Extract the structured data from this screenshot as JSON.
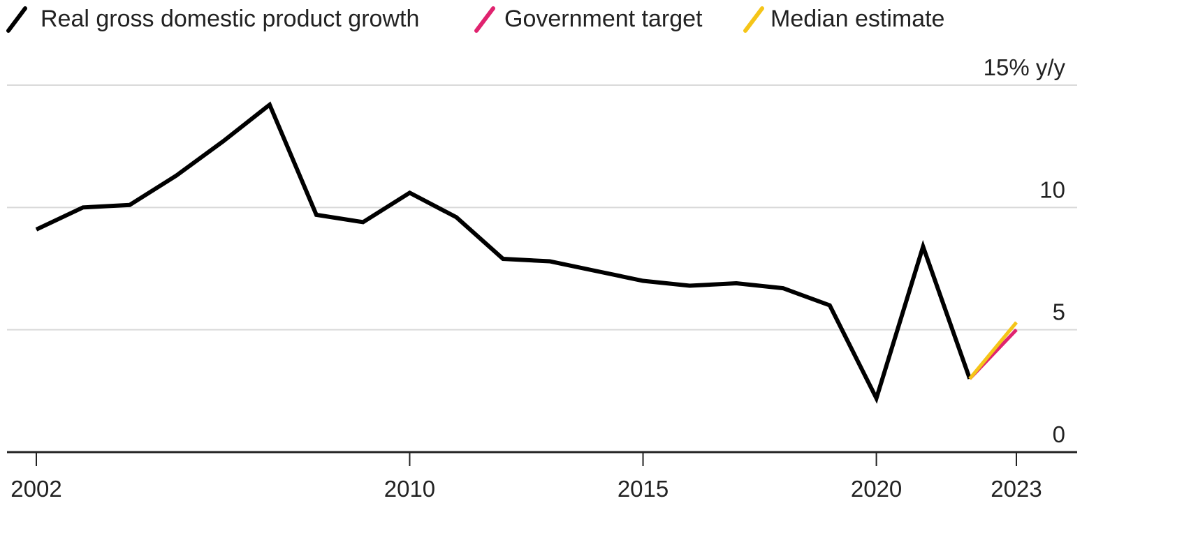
{
  "chart_data": {
    "type": "line",
    "title": "",
    "xlabel": "",
    "ylabel": "",
    "y_unit_label": "15% y/y",
    "xlim": [
      2002,
      2024
    ],
    "ylim": [
      0,
      15
    ],
    "x_ticks": [
      {
        "value": 2002,
        "label": "2002"
      },
      {
        "value": 2010,
        "label": "2010"
      },
      {
        "value": 2015,
        "label": "2015"
      },
      {
        "value": 2020,
        "label": "2020"
      },
      {
        "value": 2023,
        "label": "2023"
      }
    ],
    "y_ticks": [
      {
        "value": 0,
        "label": "0"
      },
      {
        "value": 5,
        "label": "5"
      },
      {
        "value": 10,
        "label": "10"
      }
    ],
    "gridlines": [
      5,
      10,
      15
    ],
    "legend_position": "top-left",
    "series": [
      {
        "name": "Real gross domestic product growth",
        "color": "#000000",
        "x": [
          2002,
          2003,
          2004,
          2005,
          2006,
          2007,
          2008,
          2009,
          2010,
          2011,
          2012,
          2013,
          2014,
          2015,
          2016,
          2017,
          2018,
          2019,
          2020,
          2021,
          2022
        ],
        "y": [
          9.1,
          10.0,
          10.1,
          11.3,
          12.7,
          14.2,
          9.7,
          9.4,
          10.6,
          9.6,
          7.9,
          7.8,
          7.4,
          7.0,
          6.8,
          6.9,
          6.7,
          6.0,
          2.2,
          8.4,
          3.0
        ]
      },
      {
        "name": "Government target",
        "color": "#e0236f",
        "x": [
          2022,
          2023
        ],
        "y": [
          3.0,
          5.0
        ]
      },
      {
        "name": "Median estimate",
        "color": "#f5c518",
        "x": [
          2022,
          2023
        ],
        "y": [
          3.0,
          5.3
        ]
      }
    ]
  }
}
